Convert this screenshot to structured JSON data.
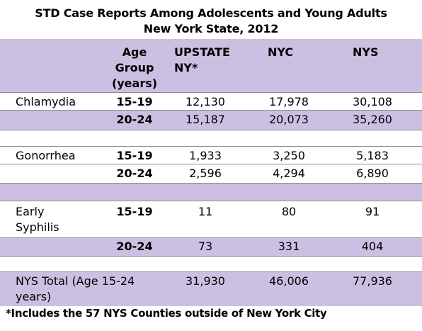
{
  "title_line1": "STD Case Reports Among Adolescents and Young Adults",
  "title_line2": "New York State, 2012",
  "headers": {
    "age_group": [
      "Age",
      "Group",
      "(years)"
    ],
    "upstate": [
      "UPSTATE",
      "NY*"
    ],
    "nyc": "NYC",
    "nys": "NYS"
  },
  "rows": {
    "chlamydia_1519": {
      "disease": "Chlamydia",
      "age": "15-19",
      "upstate": "12,130",
      "nyc": "17,978",
      "nys": "30,108"
    },
    "chlamydia_2024": {
      "age": "20-24",
      "upstate": "15,187",
      "nyc": "20,073",
      "nys": "35,260"
    },
    "gonorrhea_1519": {
      "disease": "Gonorrhea",
      "age": "15-19",
      "upstate": "1,933",
      "nyc": "3,250",
      "nys": "5,183"
    },
    "gonorrhea_2024": {
      "age": "20-24",
      "upstate": "2,596",
      "nyc": "4,294",
      "nys": "6,890"
    },
    "syphilis_1519": {
      "disease_line1": "Early",
      "disease_line2": "Syphilis",
      "age": "15-19",
      "upstate": "11",
      "nyc": "80",
      "nys": "91"
    },
    "syphilis_2024": {
      "age": "20-24",
      "upstate": "73",
      "nyc": "331",
      "nys": "404"
    },
    "total": {
      "label_line1": "NYS Total (Age 15-24",
      "label_line2": "years)",
      "upstate": "31,930",
      "nyc": "46,006",
      "nys": "77,936"
    }
  },
  "footnote": "*Includes the 57 NYS Counties outside of New York City",
  "colors": {
    "band": "#ccc0e2",
    "rule": "#8a8a8a"
  }
}
